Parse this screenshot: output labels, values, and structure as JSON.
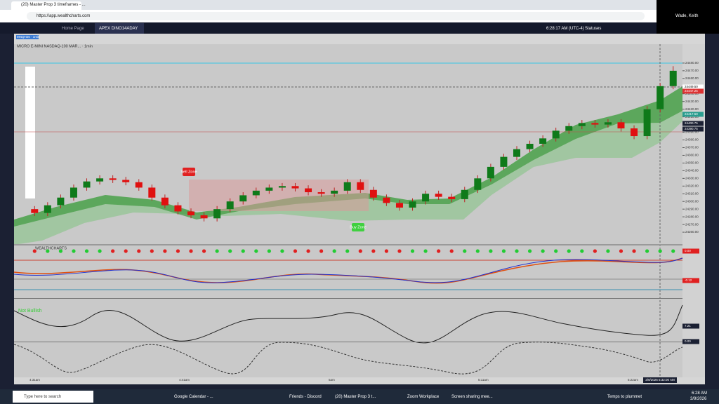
{
  "browser": {
    "tab": "(20) Master Prop 3 timeframes - ...",
    "url": "https://app.wealthcharts.com"
  },
  "app": {
    "tabs": [
      "Home Page",
      "APEX DINO14ADAY"
    ],
    "clock": "6:28:17 AM (UTC-4)",
    "status": "Statuses",
    "symbol_tab": "MNQH26 · 1min"
  },
  "webcam": {
    "name": "Wade, Keith"
  },
  "chart": {
    "header": "MICRO E-MINI NASDAQ-100 MAR... · 1min",
    "sell_label": "Sell Zone",
    "buy_label": "Buy Zone",
    "signal_text": "Not Bullish",
    "indicator_brand": "WEALTHCHARTS",
    "price_tags": [
      "24449.50",
      "24447.25",
      "24417.50",
      "24400.75",
      "24390.75"
    ],
    "panel_labels": [
      "0.00",
      "-0.12",
      "7.21",
      "0.00"
    ],
    "time_labels": [
      "4:31am",
      "4:41am",
      "5am",
      "5:11am",
      "5:22am"
    ],
    "cursor_time": "3/9/2026 5:32:00 AM"
  },
  "chart_data": {
    "type": "candlestick",
    "ylim": [
      24250,
      24500
    ],
    "yticks": [
      {
        "value": 24260,
        "label": "24260.00"
      },
      {
        "value": 24270,
        "label": "24270.00"
      },
      {
        "value": 24280,
        "label": "24280.00"
      },
      {
        "value": 24290,
        "label": "24290.00"
      },
      {
        "value": 24300,
        "label": "24300.00"
      },
      {
        "value": 24310,
        "label": "24310.00"
      },
      {
        "value": 24320,
        "label": "24320.00"
      },
      {
        "value": 24330,
        "label": "24330.00"
      },
      {
        "value": 24340,
        "label": "24340.00"
      },
      {
        "value": 24350,
        "label": "24350.00"
      },
      {
        "value": 24360,
        "label": "24360.00"
      },
      {
        "value": 24370,
        "label": "24370.00"
      },
      {
        "value": 24380,
        "label": "24380.00"
      },
      {
        "value": 24390,
        "label": "24390.00"
      },
      {
        "value": 24400,
        "label": "24400.00"
      },
      {
        "value": 24410,
        "label": "24410.00"
      },
      {
        "value": 24420,
        "label": "24420.00"
      },
      {
        "value": 24430,
        "label": "24430.00"
      },
      {
        "value": 24440,
        "label": "24440.00"
      },
      {
        "value": 24450,
        "label": "24450.00"
      },
      {
        "value": 24460,
        "label": "24460.00"
      },
      {
        "value": 24470,
        "label": "24470.00"
      },
      {
        "value": 24480,
        "label": "24480.00"
      }
    ],
    "candles": [
      [
        24290,
        24294,
        24281,
        24285
      ],
      [
        24285,
        24299,
        24281,
        24295
      ],
      [
        24295,
        24309,
        24291,
        24305
      ],
      [
        24305,
        24322,
        24301,
        24318
      ],
      [
        24318,
        24330,
        24314,
        24326
      ],
      [
        24326,
        24334,
        24322,
        24330
      ],
      [
        24330,
        24334,
        24324,
        24328
      ],
      [
        24328,
        24332,
        24321,
        24325
      ],
      [
        24325,
        24329,
        24314,
        24318
      ],
      [
        24318,
        24322,
        24301,
        24305
      ],
      [
        24305,
        24309,
        24291,
        24295
      ],
      [
        24295,
        24299,
        24283,
        24287
      ],
      [
        24287,
        24291,
        24278,
        24282
      ],
      [
        24282,
        24286,
        24274,
        24278
      ],
      [
        24278,
        24294,
        24274,
        24290
      ],
      [
        24290,
        24304,
        24286,
        24300
      ],
      [
        24300,
        24312,
        24296,
        24308
      ],
      [
        24308,
        24318,
        24304,
        24314
      ],
      [
        24314,
        24322,
        24310,
        24318
      ],
      [
        24318,
        24324,
        24314,
        24320
      ],
      [
        24320,
        24324,
        24313,
        24317
      ],
      [
        24317,
        24321,
        24308,
        24312
      ],
      [
        24312,
        24316,
        24306,
        24310
      ],
      [
        24310,
        24318,
        24306,
        24314
      ],
      [
        24314,
        24329,
        24310,
        24325
      ],
      [
        24325,
        24329,
        24311,
        24315
      ],
      [
        24315,
        24319,
        24301,
        24305
      ],
      [
        24305,
        24309,
        24294,
        24298
      ],
      [
        24298,
        24302,
        24288,
        24292
      ],
      [
        24292,
        24304,
        24288,
        24300
      ],
      [
        24300,
        24314,
        24296,
        24310
      ],
      [
        24310,
        24314,
        24302,
        24306
      ],
      [
        24306,
        24310,
        24299,
        24303
      ],
      [
        24303,
        24319,
        24299,
        24315
      ],
      [
        24315,
        24334,
        24311,
        24330
      ],
      [
        24330,
        24349,
        24326,
        24345
      ],
      [
        24345,
        24362,
        24341,
        24358
      ],
      [
        24358,
        24372,
        24354,
        24368
      ],
      [
        24368,
        24379,
        24364,
        24375
      ],
      [
        24375,
        24386,
        24371,
        24382
      ],
      [
        24382,
        24396,
        24378,
        24392
      ],
      [
        24392,
        24402,
        24388,
        24398
      ],
      [
        24398,
        24406,
        24394,
        24402
      ],
      [
        24402,
        24406,
        24396,
        24400
      ],
      [
        24400,
        24407,
        24396,
        24403
      ],
      [
        24403,
        24407,
        24391,
        24395
      ],
      [
        24395,
        24399,
        24381,
        24385
      ],
      [
        24385,
        24424,
        24381,
        24420
      ],
      [
        24420,
        24454,
        24416,
        24450
      ],
      [
        24450,
        24476,
        24446,
        24470
      ]
    ]
  },
  "taskbar": {
    "search": "Type here to search",
    "apps": [
      "Google Calendar - ...",
      "Friends - Discord",
      "(20) Master Prop 3 t...",
      "Zoom Workplace",
      "Screen sharing mee..."
    ],
    "weather": "Temps to plummet",
    "time": "6:28 AM",
    "date": "3/9/2026"
  }
}
